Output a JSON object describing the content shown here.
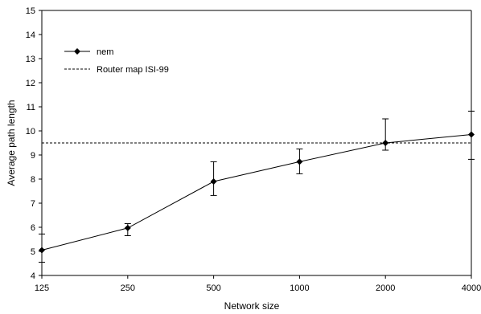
{
  "chart_data": {
    "type": "line",
    "title": "",
    "xlabel": "Network size",
    "ylabel": "Average path length",
    "x_scale": "log",
    "categories": [
      "125",
      "250",
      "500",
      "1000",
      "2000",
      "4000"
    ],
    "ylim": [
      4,
      15
    ],
    "y_ticks": [
      "4",
      "5",
      "6",
      "7",
      "8",
      "9",
      "10",
      "11",
      "12",
      "13",
      "14",
      "15"
    ],
    "grid": false,
    "legend_position": "top-left",
    "series": [
      {
        "name": "nem",
        "style": "solid-diamond",
        "color": "#000000",
        "x": [
          125,
          250,
          500,
          1000,
          2000,
          4000
        ],
        "values": [
          5.05,
          5.97,
          7.9,
          8.72,
          9.5,
          9.85
        ],
        "error_low": [
          4.55,
          5.65,
          7.32,
          8.22,
          9.2,
          8.82
        ],
        "error_high": [
          5.72,
          6.15,
          8.72,
          9.25,
          10.5,
          10.82
        ]
      },
      {
        "name": "Router map ISI-99",
        "style": "dashed",
        "color": "#000000",
        "constant": 9.5
      }
    ]
  }
}
